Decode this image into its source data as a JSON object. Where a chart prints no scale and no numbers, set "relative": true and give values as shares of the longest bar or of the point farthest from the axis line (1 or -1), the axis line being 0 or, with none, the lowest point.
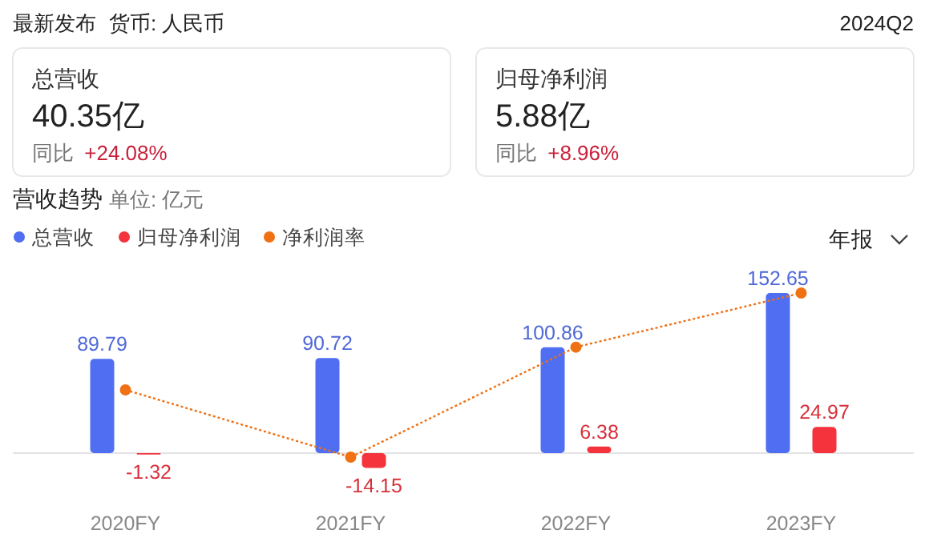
{
  "chart_data": [
    {
      "type": "other",
      "title": "最新发布",
      "subtitle": "货币: 人民币",
      "annotations": [
        "2024Q2",
        "总营收",
        "40.35亿",
        "同比 +24.08%",
        "归母净利润",
        "5.88亿",
        "同比 +8.96%"
      ]
    },
    {
      "type": "bar",
      "title": "营收趋势",
      "subtitle": "单位: 亿元",
      "categories": [
        "2020FY",
        "2021FY",
        "2022FY",
        "2023FY"
      ],
      "series": [
        {
          "name": "总营收",
          "color": "#4f6ef2",
          "values": [
            89.79,
            90.72,
            100.86,
            152.65
          ],
          "value_labels": [
            "89.79",
            "90.72",
            "100.86",
            "152.65"
          ]
        },
        {
          "name": "归母净利润",
          "color": "#f4333c",
          "values": [
            -1.32,
            -14.15,
            6.38,
            24.97
          ],
          "value_labels": [
            "-1.32",
            "-14.15",
            "6.38",
            "24.97"
          ]
        }
      ],
      "legend": "top left",
      "annotations": [
        "年报"
      ]
    },
    {
      "type": "line",
      "relative": true,
      "tick_labels": false,
      "categories": [
        "2020FY",
        "2021FY",
        "2022FY",
        "2023FY"
      ],
      "marker": "circle",
      "line_style": "dotted",
      "legend": "top left",
      "series": [
        {
          "name": "净利润率",
          "color": "#f07014",
          "values": [
            0.41,
            0,
            0.67,
            1
          ]
        }
      ]
    }
  ]
}
